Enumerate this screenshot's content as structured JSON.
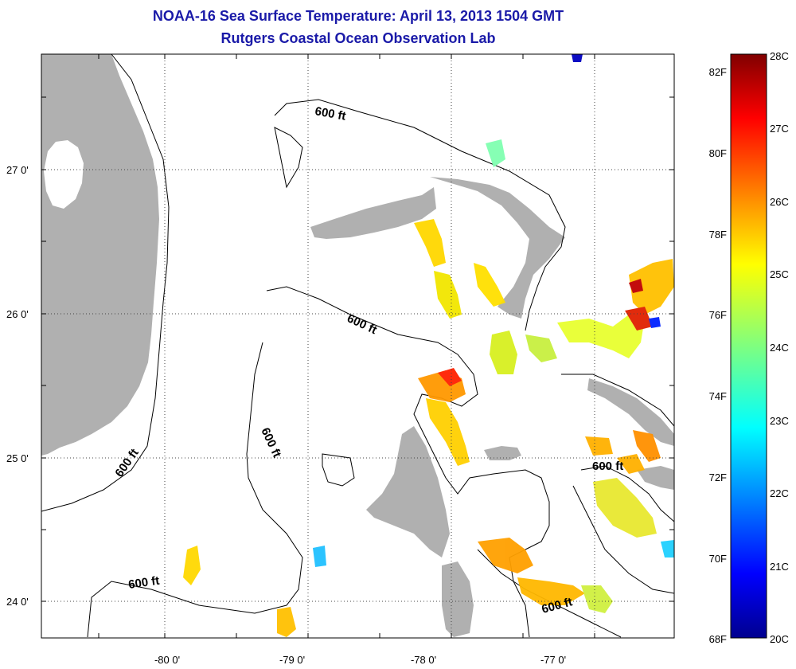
{
  "title": "NOAA-16 Sea Surface Temperature:  April 13, 2013 1504 GMT",
  "subtitle": "Rutgers Coastal Ocean Observation Lab",
  "lat_labels": [
    "27 0'",
    "26 0'",
    "25 0'",
    "24 0'"
  ],
  "lon_labels": [
    "-80 0'",
    "-79 0'",
    "-78 0'",
    "-77 0'"
  ],
  "contour_label": "600 ft",
  "colorbar": {
    "fahrenheit_labels": [
      "82F",
      "80F",
      "78F",
      "76F",
      "74F",
      "72F",
      "70F",
      "68F"
    ],
    "celsius_labels": [
      "28C",
      "27C",
      "26C",
      "25C",
      "24C",
      "23C",
      "22C",
      "21C",
      "20C"
    ],
    "min_c": 20,
    "max_c": 28,
    "colormap": "jet"
  },
  "colors": {
    "title": "#1a1aa8",
    "land": "#b0b0b0",
    "ocean": "#ffffff",
    "contour": "#000000"
  }
}
